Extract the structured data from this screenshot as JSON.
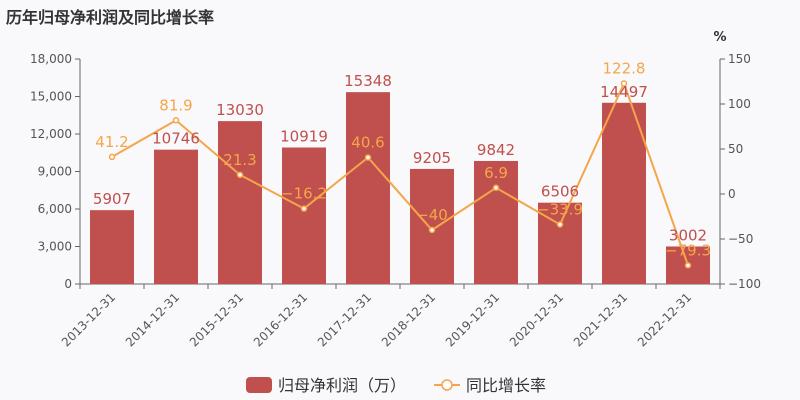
{
  "title": "历年归母净利润及同比增长率",
  "colors": {
    "bar": "#c0504d",
    "line": "#f5a54a",
    "axis": "#666666",
    "grid": "#e6e6e6"
  },
  "chart_data": {
    "type": "bar",
    "title": "历年归母净利润及同比增长率",
    "categories": [
      "2013-12-31",
      "2014-12-31",
      "2015-12-31",
      "2016-12-31",
      "2017-12-31",
      "2018-12-31",
      "2019-12-31",
      "2020-12-31",
      "2021-12-31",
      "2022-12-31"
    ],
    "series": [
      {
        "name": "归母净利润（万）",
        "type": "bar",
        "axis": "left",
        "values": [
          5907,
          10746,
          13030,
          10919,
          15348,
          9205,
          9842,
          6506,
          14497,
          3002
        ],
        "labels": [
          "5907",
          "10746",
          "13030",
          "10919",
          "15348",
          "9205",
          "9842",
          "6506",
          "14497",
          "3002"
        ]
      },
      {
        "name": "同比增长率",
        "type": "line",
        "axis": "right",
        "values": [
          41.2,
          81.9,
          21.3,
          -16.2,
          40.6,
          -40,
          6.9,
          -33.9,
          122.8,
          -79.3
        ],
        "labels": [
          "41.2",
          "81.9",
          "21.3",
          "−16.2",
          "40.6",
          "−40",
          "6.9",
          "−33.9",
          "122.8",
          "−79.3"
        ]
      }
    ],
    "y_left": {
      "lim": [
        0,
        18000
      ],
      "ticks": [
        0,
        3000,
        6000,
        9000,
        12000,
        15000,
        18000
      ],
      "tick_labels": [
        "0",
        "3,000",
        "6,000",
        "9,000",
        "12,000",
        "15,000",
        "18,000"
      ]
    },
    "y_right": {
      "unit_label": "%",
      "lim": [
        -100,
        150
      ],
      "ticks": [
        -100,
        -50,
        0,
        50,
        100,
        150
      ],
      "tick_labels": [
        "−100",
        "−50",
        "0",
        "50",
        "100",
        "150"
      ]
    },
    "legend": {
      "position": "bottom-center",
      "items": [
        "归母净利润（万）",
        "同比增长率"
      ]
    },
    "grid": false
  }
}
